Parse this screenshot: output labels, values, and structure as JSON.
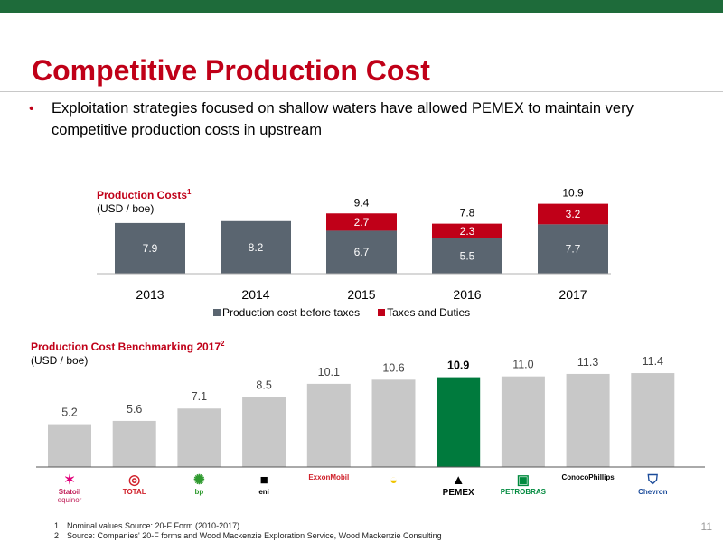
{
  "slide": {
    "title": "Competitive Production Cost",
    "bullet": "Exploitation strategies focused on shallow waters have allowed PEMEX to maintain very competitive production costs in upstream",
    "page_number": "11"
  },
  "chart1_text": {
    "title": "Production Costs",
    "title_sup": "1",
    "unit": "(USD / boe)"
  },
  "chart2_text": {
    "title": "Production Cost Benchmarking 2017",
    "title_sup": "2",
    "unit": "(USD / boe)"
  },
  "chart_data": [
    {
      "type": "bar",
      "stacked": true,
      "title": "Production Costs",
      "unit": "(USD / boe)",
      "categories": [
        "2013",
        "2014",
        "2015",
        "2016",
        "2017"
      ],
      "series": [
        {
          "name": "Production cost before taxes",
          "color": "#5a6570",
          "values": [
            7.9,
            8.2,
            6.7,
            5.5,
            7.7
          ]
        },
        {
          "name": "Taxes and Duties",
          "color": "#c00018",
          "values": [
            0,
            0,
            2.7,
            2.3,
            3.2
          ]
        }
      ],
      "totals": [
        "",
        "",
        "9.4",
        "7.8",
        "10.9"
      ],
      "ylim": [
        0,
        11
      ],
      "legend": "bottom"
    },
    {
      "type": "bar",
      "title": "Production Cost Benchmarking 2017",
      "unit": "(USD / boe)",
      "categories": [
        "Statoil equinor",
        "TOTAL",
        "bp",
        "eni",
        "ExxonMobil",
        "Shell",
        "PEMEX",
        "PETROBRAS",
        "ConocoPhillips",
        "Chevron"
      ],
      "values": [
        5.2,
        5.6,
        7.1,
        8.5,
        10.1,
        10.6,
        10.9,
        11.0,
        11.3,
        11.4
      ],
      "labels": [
        "5.2",
        "5.6",
        "7.1",
        "8.5",
        "10.1",
        "10.6",
        "10.9",
        "11.0",
        "11.3",
        "11.4"
      ],
      "bar_color": "#c8c8c8",
      "highlight_color": "#007a3d",
      "highlight_index": 6,
      "ylim": [
        0,
        11.4
      ]
    }
  ],
  "logos": [
    {
      "name": "statoil-equinor-logo",
      "text": "Statoil",
      "text2": "equinor",
      "color": "#c0205a"
    },
    {
      "name": "total-logo",
      "text": "TOTAL",
      "color": "#d0202a"
    },
    {
      "name": "bp-logo",
      "text": "bp",
      "color": "#2f9a2f"
    },
    {
      "name": "eni-logo",
      "text": "eni",
      "color": "#000000"
    },
    {
      "name": "exxonmobil-logo",
      "text": "ExxonMobil",
      "color": "#d0202a"
    },
    {
      "name": "shell-logo",
      "text": "",
      "color": "#d0202a"
    },
    {
      "name": "pemex-logo",
      "text": "PEMEX",
      "color": "#000000"
    },
    {
      "name": "petrobras-logo",
      "text": "PETROBRAS",
      "color": "#008a3e"
    },
    {
      "name": "conocophillips-logo",
      "text": "ConocoPhillips",
      "color": "#000000"
    },
    {
      "name": "chevron-logo",
      "text": "Chevron",
      "color": "#1b4b9a"
    }
  ],
  "footnotes": [
    {
      "num": "1",
      "text": "Nominal values Source: 20-F Form  (2010-2017)"
    },
    {
      "num": "2",
      "text": "Source: Companies' 20-F forms and Wood Mackenzie Exploration Service, Wood Mackenzie Consulting"
    }
  ]
}
